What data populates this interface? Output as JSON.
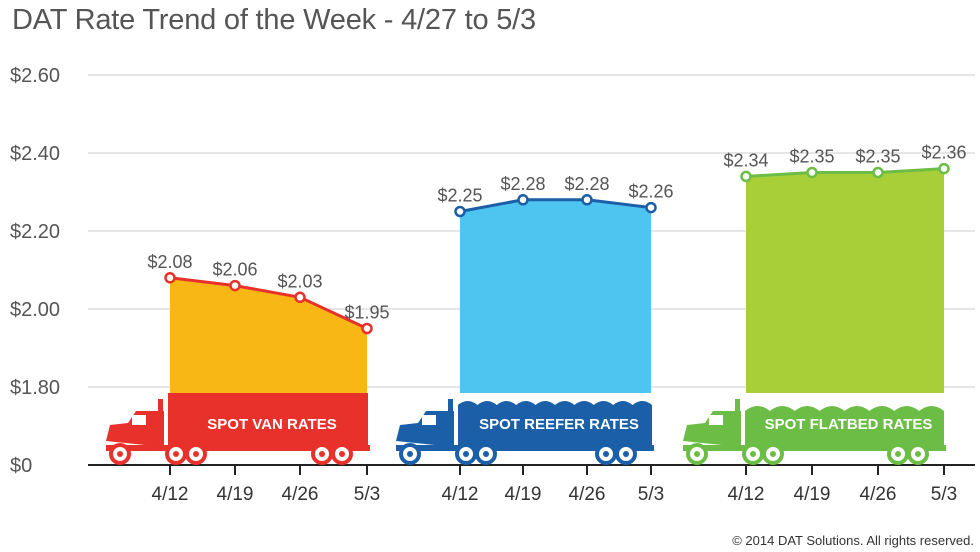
{
  "title": "DAT Rate Trend of the Week - 4/27 to 5/3",
  "footer": "© 2014 DAT Solutions. All rights reserved.",
  "chart_data": {
    "type": "area",
    "ylim": [
      0,
      2.6
    ],
    "yticks": [
      "$0",
      "$1.80",
      "$2.00",
      "$2.20",
      "$2.40",
      "$2.60"
    ],
    "grid": true,
    "axis_break": "between $0 and $1.80",
    "x": [
      "4/12",
      "4/19",
      "4/26",
      "5/3"
    ],
    "series": [
      {
        "name": "SPOT VAN RATES",
        "values": [
          2.08,
          2.06,
          2.03,
          1.95
        ],
        "labels": [
          "$2.08",
          "$2.06",
          "$2.03",
          "$1.95"
        ],
        "color": "#f9b716",
        "line_color": "#e8312a",
        "truck_color": "#e8312a"
      },
      {
        "name": "SPOT REEFER RATES",
        "values": [
          2.25,
          2.28,
          2.28,
          2.26
        ],
        "labels": [
          "$2.25",
          "$2.28",
          "$2.28",
          "$2.26"
        ],
        "color": "#4ec5f1",
        "line_color": "#1b5fa8",
        "truck_color": "#1b5fa8"
      },
      {
        "name": "SPOT FLATBED RATES",
        "values": [
          2.34,
          2.35,
          2.35,
          2.36
        ],
        "labels": [
          "$2.34",
          "$2.35",
          "$2.35",
          "$2.36"
        ],
        "color": "#a9cf38",
        "line_color": "#6cbd45",
        "truck_color": "#6cbd45"
      }
    ]
  }
}
